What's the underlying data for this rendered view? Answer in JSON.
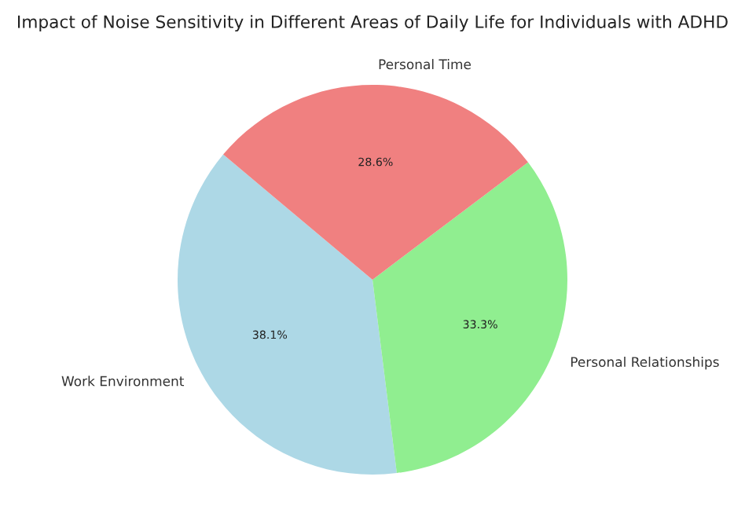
{
  "chart_data": {
    "type": "pie",
    "title": "Impact of Noise Sensitivity in Different Areas of Daily Life for Individuals with ADHD",
    "categories": [
      "Work Environment",
      "Personal Relationships",
      "Personal Time"
    ],
    "values": [
      38.1,
      33.3,
      28.6
    ],
    "colors": [
      "#add8e6",
      "#90ee90",
      "#f08080"
    ],
    "value_labels": [
      "38.1%",
      "33.3%",
      "28.6%"
    ]
  }
}
